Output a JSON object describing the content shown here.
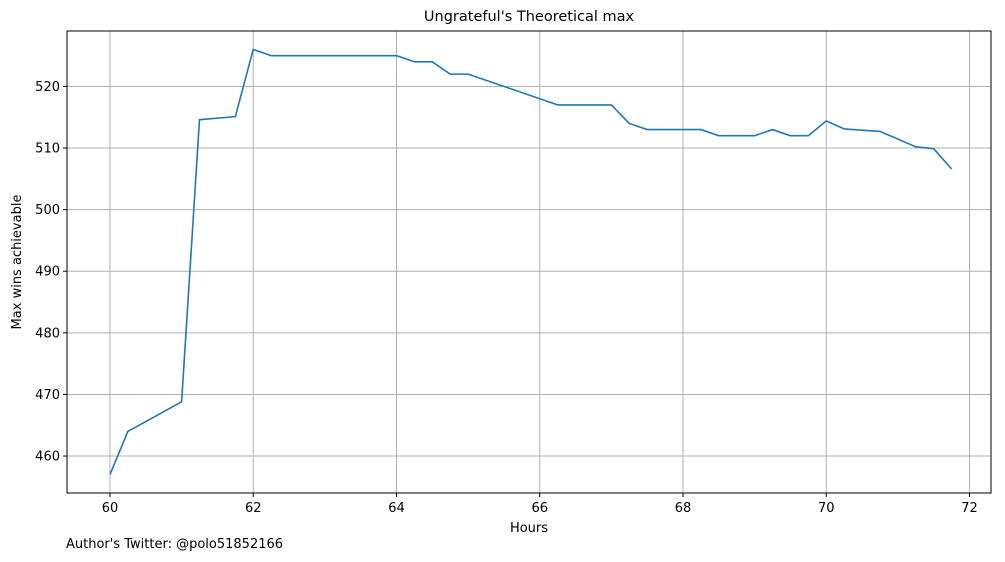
{
  "chart_data": {
    "type": "line",
    "title": "Ungrateful's Theoretical max",
    "xlabel": "Hours",
    "ylabel": "Max wins achievable",
    "xlim": [
      59.4,
      72.3
    ],
    "ylim": [
      454,
      529
    ],
    "xticks": [
      60,
      62,
      64,
      66,
      68,
      70,
      72
    ],
    "yticks": [
      460,
      470,
      480,
      490,
      500,
      510,
      520
    ],
    "grid": true,
    "series": [
      {
        "color": "#1f77b4",
        "x": [
          60,
          60.25,
          61,
          61.25,
          61.75,
          62,
          62.25,
          63,
          64,
          64.25,
          64.5,
          64.75,
          65,
          66.25,
          67,
          67.25,
          67.5,
          68.25,
          68.5,
          69,
          69.25,
          69.5,
          69.75,
          70,
          70.25,
          70.75,
          71.25,
          71.5,
          71.75
        ],
        "y": [
          457,
          464,
          468.8,
          514.6,
          515.1,
          526,
          525,
          525,
          525,
          524,
          524,
          522,
          522,
          517,
          517,
          514,
          513,
          513,
          512,
          512,
          513,
          512,
          512,
          514.4,
          513.1,
          512.7,
          510.2,
          509.9,
          506.6
        ]
      }
    ]
  },
  "footnote": "Author's Twitter: @polo51852166"
}
